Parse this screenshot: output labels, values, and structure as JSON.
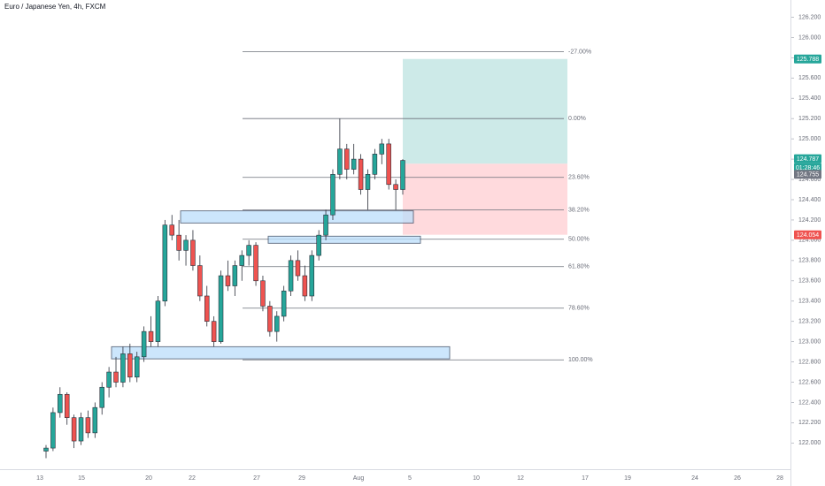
{
  "header": {
    "title": "Euro / Japanese Yen, 4h, FXCM"
  },
  "colors": {
    "up": "#26a69a",
    "down": "#ef5350",
    "wick": "#2a2e39",
    "zone_fill": "#bbdefb",
    "zone_border": "#2a3b55",
    "target_fill": "#b2dfdb",
    "stop_fill": "#ffcdd2",
    "fib_line": "#6b6f79",
    "axis_text": "#6a6d78"
  },
  "price_axis": {
    "ticks": [
      "126.200",
      "126.000",
      "125.800",
      "125.600",
      "125.400",
      "125.200",
      "125.000",
      "124.800",
      "124.600",
      "124.400",
      "124.200",
      "124.000",
      "123.800",
      "123.600",
      "123.400",
      "123.200",
      "123.000",
      "122.800",
      "122.600",
      "122.400",
      "122.200",
      "122.000"
    ],
    "badges": [
      {
        "name": "target-price-badge",
        "text": "125.788",
        "color": "#26a69a"
      },
      {
        "name": "last-price-badge",
        "text": "124.787",
        "color": "#26a69a"
      },
      {
        "name": "countdown-badge",
        "text": "01:28:46",
        "color": "#26a69a"
      },
      {
        "name": "entry-price-badge",
        "text": "124.755",
        "color": "#737783"
      },
      {
        "name": "stop-price-badge",
        "text": "124.054",
        "color": "#ef5350"
      }
    ]
  },
  "time_axis": {
    "labels": [
      "13",
      "15",
      "20",
      "22",
      "27",
      "29",
      "Aug",
      "5",
      "10",
      "12",
      "17",
      "19",
      "24",
      "26",
      "28"
    ]
  },
  "fib_levels": [
    {
      "label": "-27.00%",
      "price": 125.86
    },
    {
      "label": "0.00%",
      "price": 125.2
    },
    {
      "label": "23.60%",
      "price": 124.62
    },
    {
      "label": "38.20%",
      "price": 124.3
    },
    {
      "label": "50.00%",
      "price": 124.01
    },
    {
      "label": "61.80%",
      "price": 123.74
    },
    {
      "label": "78.60%",
      "price": 123.33
    },
    {
      "label": "100.00%",
      "price": 122.82
    }
  ],
  "zones": [
    {
      "name": "supply-zone-upper",
      "top": 124.29,
      "bottom": 124.17
    },
    {
      "name": "supply-zone-mid",
      "top": 124.04,
      "bottom": 123.97
    },
    {
      "name": "demand-zone-lower",
      "top": 122.95,
      "bottom": 122.83
    }
  ],
  "position": {
    "target": 125.788,
    "entry": 124.755,
    "stop": 124.054
  },
  "chart_data": {
    "type": "candlestick",
    "symbol": "EURJPY",
    "timeframe": "4h",
    "ylim": [
      121.82,
      126.3
    ],
    "y_ticks": [
      122.0,
      122.2,
      122.4,
      122.6,
      122.8,
      123.0,
      123.2,
      123.4,
      123.6,
      123.8,
      124.0,
      124.2,
      124.4,
      124.6,
      124.8,
      125.0,
      125.2,
      125.4,
      125.6,
      125.8,
      126.0,
      126.2
    ],
    "candles": [
      [
        121.92,
        121.98,
        121.85,
        121.95
      ],
      [
        121.95,
        122.35,
        121.92,
        122.3
      ],
      [
        122.3,
        122.55,
        122.25,
        122.48
      ],
      [
        122.48,
        122.5,
        122.18,
        122.25
      ],
      [
        122.25,
        122.28,
        121.95,
        122.02
      ],
      [
        122.02,
        122.3,
        121.98,
        122.25
      ],
      [
        122.25,
        122.32,
        122.05,
        122.1
      ],
      [
        122.1,
        122.4,
        122.05,
        122.35
      ],
      [
        122.35,
        122.6,
        122.28,
        122.55
      ],
      [
        122.55,
        122.75,
        122.45,
        122.7
      ],
      [
        122.7,
        122.85,
        122.55,
        122.6
      ],
      [
        122.6,
        122.95,
        122.55,
        122.88
      ],
      [
        122.88,
        122.98,
        122.6,
        122.65
      ],
      [
        122.65,
        122.9,
        122.6,
        122.85
      ],
      [
        122.85,
        123.15,
        122.8,
        123.1
      ],
      [
        123.1,
        123.25,
        122.95,
        123.0
      ],
      [
        123.0,
        123.45,
        122.95,
        123.4
      ],
      [
        123.4,
        124.2,
        123.35,
        124.15
      ],
      [
        124.15,
        124.25,
        124.0,
        124.05
      ],
      [
        124.05,
        124.2,
        123.8,
        123.9
      ],
      [
        123.9,
        124.05,
        123.75,
        124.0
      ],
      [
        124.0,
        124.1,
        123.7,
        123.75
      ],
      [
        123.75,
        123.85,
        123.4,
        123.45
      ],
      [
        123.45,
        123.55,
        123.15,
        123.2
      ],
      [
        123.2,
        123.25,
        122.95,
        123.0
      ],
      [
        123.0,
        123.7,
        122.98,
        123.65
      ],
      [
        123.65,
        123.8,
        123.5,
        123.55
      ],
      [
        123.55,
        123.8,
        123.45,
        123.75
      ],
      [
        123.75,
        123.9,
        123.6,
        123.85
      ],
      [
        123.85,
        124.0,
        123.75,
        123.95
      ],
      [
        123.95,
        123.98,
        123.55,
        123.6
      ],
      [
        123.6,
        123.65,
        123.3,
        123.35
      ],
      [
        123.35,
        123.4,
        123.05,
        123.1
      ],
      [
        123.1,
        123.3,
        123.0,
        123.25
      ],
      [
        123.25,
        123.55,
        123.2,
        123.5
      ],
      [
        123.5,
        123.85,
        123.45,
        123.8
      ],
      [
        123.8,
        123.9,
        123.6,
        123.65
      ],
      [
        123.65,
        123.75,
        123.4,
        123.45
      ],
      [
        123.45,
        123.9,
        123.4,
        123.85
      ],
      [
        123.85,
        124.1,
        123.8,
        124.05
      ],
      [
        124.05,
        124.3,
        124.0,
        124.25
      ],
      [
        124.25,
        124.7,
        124.2,
        124.65
      ],
      [
        124.65,
        125.2,
        124.6,
        124.9
      ],
      [
        124.9,
        124.95,
        124.6,
        124.7
      ],
      [
        124.7,
        124.95,
        124.65,
        124.8
      ],
      [
        124.8,
        124.85,
        124.45,
        124.5
      ],
      [
        124.5,
        124.7,
        124.3,
        124.65
      ],
      [
        124.65,
        124.9,
        124.6,
        124.85
      ],
      [
        124.85,
        125.0,
        124.75,
        124.95
      ],
      [
        124.95,
        125.0,
        124.5,
        124.55
      ],
      [
        124.55,
        124.6,
        124.3,
        124.5
      ],
      [
        124.5,
        124.8,
        124.45,
        124.787
      ]
    ]
  }
}
